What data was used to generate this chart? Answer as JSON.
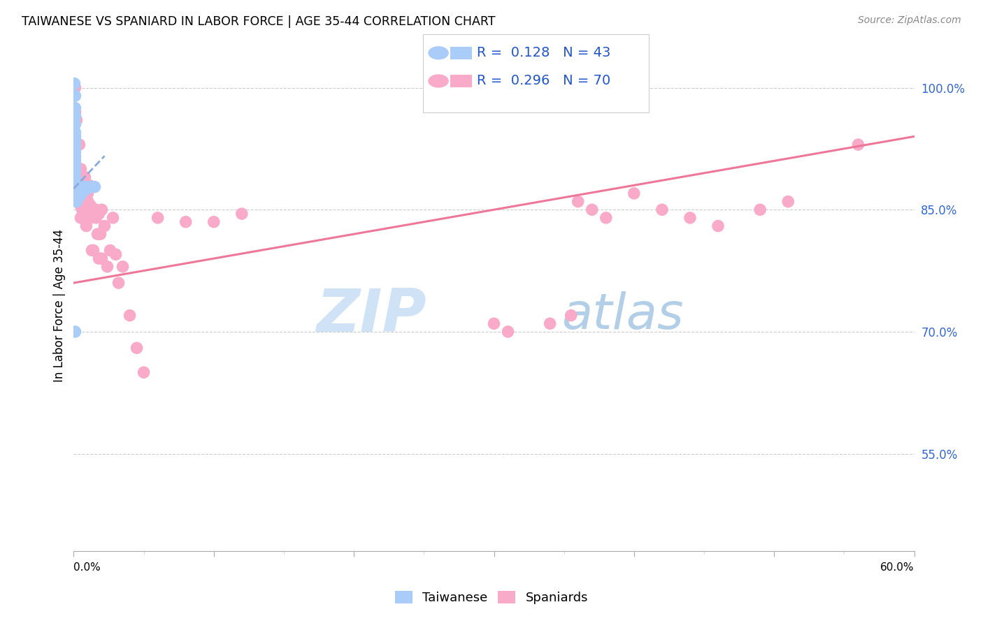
{
  "title": "TAIWANESE VS SPANIARD IN LABOR FORCE | AGE 35-44 CORRELATION CHART",
  "source": "Source: ZipAtlas.com",
  "ylabel": "In Labor Force | Age 35-44",
  "right_yticklabels": [
    "100.0%",
    "85.0%",
    "70.0%",
    "55.0%"
  ],
  "right_yticks_pct": [
    1.0,
    0.85,
    0.7,
    0.55
  ],
  "tw_R": 0.128,
  "tw_N": 43,
  "sp_R": 0.296,
  "sp_N": 70,
  "tw_color": "#aaccf8",
  "sp_color": "#f8aac8",
  "tw_line_color": "#88aadd",
  "sp_line_color": "#ee7799",
  "legend_text_color": "#2255cc",
  "watermark_zip": "ZIP",
  "watermark_atlas": "atlas",
  "watermark_color_zip": "#c8ddf0",
  "watermark_color_atlas": "#9ec8e8",
  "xlim": [
    0.0,
    0.6
  ],
  "ylim": [
    0.43,
    1.035
  ],
  "taiwanese_x": [
    0.0005,
    0.001,
    0.001,
    0.001,
    0.001,
    0.001,
    0.001,
    0.001,
    0.001,
    0.001,
    0.001,
    0.001,
    0.001,
    0.001,
    0.001,
    0.001,
    0.001,
    0.001,
    0.001,
    0.001,
    0.0015,
    0.002,
    0.002,
    0.002,
    0.002,
    0.0025,
    0.003,
    0.003,
    0.003,
    0.004,
    0.004,
    0.005,
    0.005,
    0.005,
    0.006,
    0.006,
    0.007,
    0.008,
    0.009,
    0.01,
    0.012,
    0.015,
    0.001
  ],
  "taiwanese_y": [
    1.005,
    0.99,
    0.975,
    0.965,
    0.955,
    0.945,
    0.94,
    0.935,
    0.93,
    0.925,
    0.92,
    0.915,
    0.91,
    0.905,
    0.9,
    0.895,
    0.89,
    0.885,
    0.88,
    0.875,
    0.88,
    0.875,
    0.87,
    0.865,
    0.86,
    0.875,
    0.87,
    0.865,
    0.875,
    0.878,
    0.872,
    0.878,
    0.872,
    0.868,
    0.878,
    0.872,
    0.878,
    0.878,
    0.875,
    0.878,
    0.878,
    0.878,
    0.7
  ],
  "spaniards_x": [
    0.001,
    0.001,
    0.002,
    0.003,
    0.003,
    0.004,
    0.005,
    0.005,
    0.006,
    0.006,
    0.007,
    0.007,
    0.008,
    0.008,
    0.009,
    0.009,
    0.01,
    0.01,
    0.011,
    0.011,
    0.012,
    0.013,
    0.014,
    0.015,
    0.016,
    0.017,
    0.018,
    0.019,
    0.02,
    0.022,
    0.024,
    0.026,
    0.028,
    0.03,
    0.032,
    0.035,
    0.04,
    0.045,
    0.05,
    0.003,
    0.004,
    0.005,
    0.006,
    0.007,
    0.008,
    0.009,
    0.01,
    0.012,
    0.014,
    0.016,
    0.018,
    0.02,
    0.06,
    0.08,
    0.1,
    0.12,
    0.3,
    0.31,
    0.34,
    0.355,
    0.36,
    0.37,
    0.38,
    0.4,
    0.42,
    0.44,
    0.46,
    0.49,
    0.51,
    0.56
  ],
  "spaniards_y": [
    0.97,
    1.0,
    0.96,
    0.88,
    0.87,
    0.93,
    0.84,
    0.9,
    0.86,
    0.85,
    0.88,
    0.86,
    0.89,
    0.87,
    0.85,
    0.83,
    0.87,
    0.86,
    0.88,
    0.85,
    0.84,
    0.8,
    0.8,
    0.845,
    0.84,
    0.82,
    0.79,
    0.82,
    0.79,
    0.83,
    0.78,
    0.8,
    0.84,
    0.795,
    0.76,
    0.78,
    0.72,
    0.68,
    0.65,
    0.9,
    0.87,
    0.855,
    0.84,
    0.84,
    0.84,
    0.85,
    0.86,
    0.855,
    0.85,
    0.85,
    0.845,
    0.85,
    0.84,
    0.835,
    0.835,
    0.845,
    0.71,
    0.7,
    0.71,
    0.72,
    0.86,
    0.85,
    0.84,
    0.87,
    0.85,
    0.84,
    0.83,
    0.85,
    0.86,
    0.93
  ],
  "tw_trend_x": [
    0.0,
    0.022
  ],
  "tw_trend_y": [
    0.876,
    0.916
  ],
  "sp_trend_x": [
    0.0,
    0.6
  ],
  "sp_trend_y": [
    0.76,
    0.94
  ]
}
